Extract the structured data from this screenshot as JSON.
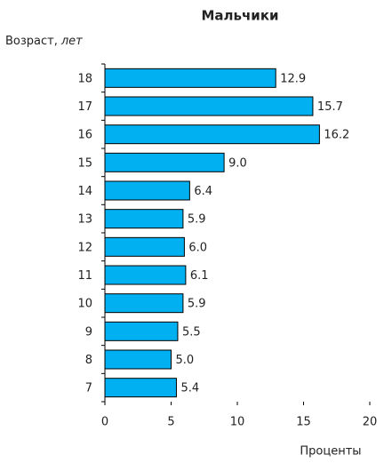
{
  "chart_data": {
    "type": "barh",
    "title": "Мальчики",
    "ylabel": {
      "text": "Возраст,",
      "unit": "лет"
    },
    "xlabel": "Проценты",
    "categories": [
      "18",
      "17",
      "16",
      "15",
      "14",
      "13",
      "12",
      "11",
      "10",
      "9",
      "8",
      "7"
    ],
    "values": [
      12.9,
      15.7,
      16.2,
      9.0,
      6.4,
      5.9,
      6.0,
      6.1,
      5.9,
      5.5,
      5.0,
      5.4
    ],
    "value_labels": [
      "12.9",
      "15.7",
      "16.2",
      "9.0",
      "6.4",
      "5.9",
      "6.0",
      "6.1",
      "5.9",
      "5.5",
      "5.0",
      "5.4"
    ],
    "color": "#00b0f0",
    "xlim": [
      0,
      20
    ],
    "xticks": [
      0,
      5,
      10,
      15,
      20
    ]
  }
}
